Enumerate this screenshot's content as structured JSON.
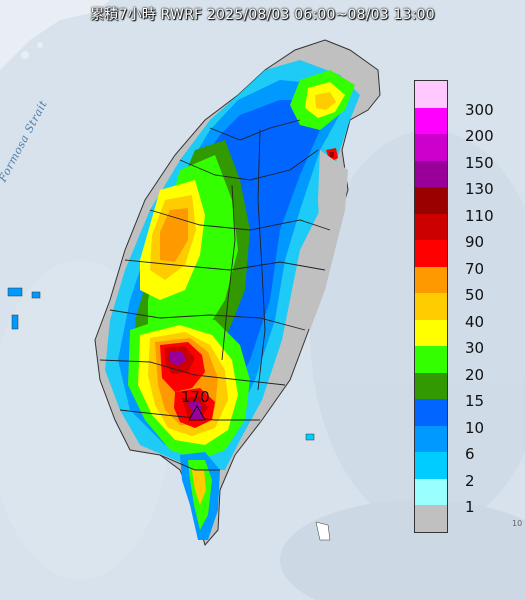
{
  "title": "累積7小時 RWRF 2025/08/03 06:00~08/03 13:00",
  "map": {
    "sea_label": "Formosa Strait",
    "max_value_label": "170",
    "corner_mark": "10"
  },
  "legend": {
    "levels": [
      {
        "label": "300",
        "color": "#ffc8ff"
      },
      {
        "label": "200",
        "color": "#ff00ff"
      },
      {
        "label": "150",
        "color": "#cc00cc"
      },
      {
        "label": "130",
        "color": "#990099"
      },
      {
        "label": "110",
        "color": "#990000"
      },
      {
        "label": "90",
        "color": "#cc0000"
      },
      {
        "label": "70",
        "color": "#ff0000"
      },
      {
        "label": "50",
        "color": "#ff9900"
      },
      {
        "label": "40",
        "color": "#ffcc00"
      },
      {
        "label": "30",
        "color": "#ffff00"
      },
      {
        "label": "20",
        "color": "#33ff00"
      },
      {
        "label": "15",
        "color": "#339900"
      },
      {
        "label": "10",
        "color": "#0066ff"
      },
      {
        "label": "6",
        "color": "#0099ff"
      },
      {
        "label": "2",
        "color": "#00ccff"
      },
      {
        "label": "1",
        "color": "#99ffff"
      },
      {
        "label": "",
        "color": "#c0c0c0"
      }
    ]
  },
  "colors": {
    "sea": "#d7e2ec",
    "land_base": "#c0c0c0",
    "border": "#222222"
  }
}
